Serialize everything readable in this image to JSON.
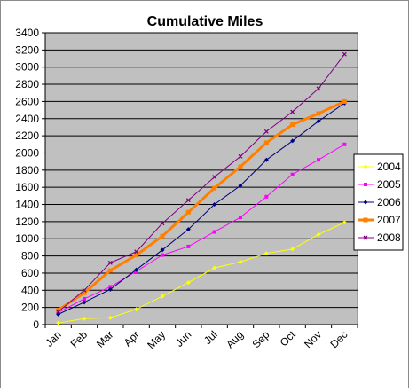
{
  "chart_data": {
    "type": "line",
    "title": "Cumulative Miles",
    "xlabel": "",
    "ylabel": "",
    "categories": [
      "Jan",
      "Feb",
      "Mar",
      "Apr",
      "May",
      "Jun",
      "Jul",
      "Aug",
      "Sep",
      "Oct",
      "Nov",
      "Dec"
    ],
    "ylim": [
      0,
      3400
    ],
    "ytick_step": 200,
    "yticks": [
      "0",
      "200",
      "400",
      "600",
      "800",
      "1000",
      "1200",
      "1400",
      "1600",
      "1800",
      "2000",
      "2200",
      "2400",
      "2600",
      "2800",
      "3000",
      "3200",
      "3400"
    ],
    "grid": true,
    "plot_background": "#c0c0c0",
    "legend_position": "right",
    "series": [
      {
        "name": "2004",
        "color": "#ffff00",
        "marker": "diamond",
        "values": [
          20,
          70,
          80,
          180,
          330,
          490,
          660,
          730,
          830,
          880,
          1050,
          1190
        ]
      },
      {
        "name": "2005",
        "color": "#ff00ff",
        "marker": "square",
        "values": [
          140,
          300,
          440,
          620,
          810,
          910,
          1080,
          1250,
          1490,
          1750,
          1920,
          2100
        ]
      },
      {
        "name": "2006",
        "color": "#000080",
        "marker": "diamond",
        "values": [
          120,
          260,
          410,
          640,
          870,
          1110,
          1400,
          1620,
          1920,
          2140,
          2370,
          2580
        ]
      },
      {
        "name": "2007",
        "color": "#ff8000",
        "marker": "square",
        "bold": true,
        "values": [
          170,
          370,
          630,
          810,
          1030,
          1310,
          1590,
          1840,
          2120,
          2330,
          2460,
          2600
        ]
      },
      {
        "name": "2008",
        "color": "#800080",
        "marker": "cross",
        "values": [
          150,
          400,
          720,
          850,
          1180,
          1450,
          1720,
          1960,
          2250,
          2480,
          2750,
          3150
        ]
      }
    ]
  }
}
